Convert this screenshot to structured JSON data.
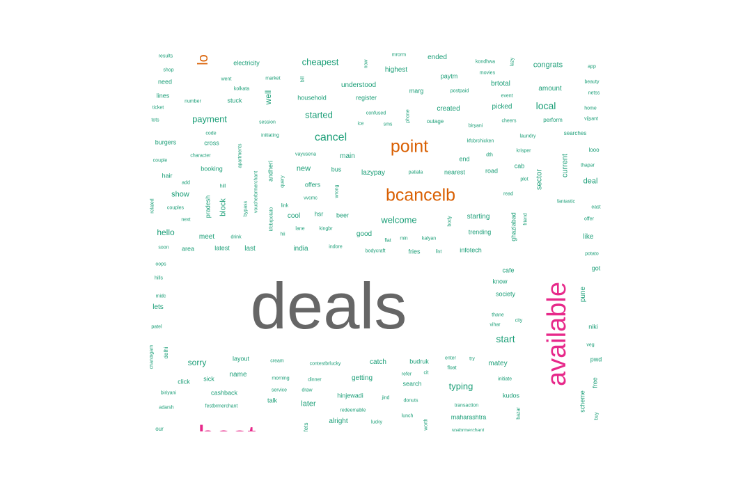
{
  "palette": {
    "small": "#1b9e77",
    "medium": "#d95f02",
    "large": "#e7298a",
    "largest": "#666666"
  },
  "words": [
    {
      "text": "deals",
      "tier": "largest"
    },
    {
      "text": "available",
      "tier": "large"
    },
    {
      "text": "best",
      "tier": "large"
    },
    {
      "text": "point",
      "tier": "medium"
    },
    {
      "text": "bcancelb",
      "tier": "medium"
    },
    {
      "text": "lo",
      "tier": "medium"
    },
    {
      "text": "cancel",
      "tier": "small"
    },
    {
      "text": "cheapest",
      "tier": "small"
    },
    {
      "text": "payment",
      "tier": "small"
    },
    {
      "text": "started",
      "tier": "small"
    },
    {
      "text": "local",
      "tier": "small"
    },
    {
      "text": "welcome",
      "tier": "small"
    },
    {
      "text": "start",
      "tier": "small"
    },
    {
      "text": "typing",
      "tier": "small"
    },
    {
      "text": "sorry",
      "tier": "small"
    },
    {
      "text": "hello",
      "tier": "small"
    },
    {
      "text": "well",
      "tier": "small"
    },
    {
      "text": "new",
      "tier": "small"
    },
    {
      "text": "show",
      "tier": "small"
    },
    {
      "text": "deal",
      "tier": "small"
    },
    {
      "text": "current",
      "tier": "small"
    },
    {
      "text": "sector",
      "tier": "small"
    },
    {
      "text": "block",
      "tier": "small"
    },
    {
      "text": "congrats",
      "tier": "small"
    },
    {
      "text": "amount",
      "tier": "small"
    },
    {
      "text": "created",
      "tier": "small"
    },
    {
      "text": "picked",
      "tier": "small"
    },
    {
      "text": "brtotal",
      "tier": "small"
    },
    {
      "text": "understood",
      "tier": "small"
    },
    {
      "text": "highest",
      "tier": "small"
    },
    {
      "text": "ended",
      "tier": "small"
    },
    {
      "text": "paytm",
      "tier": "small"
    },
    {
      "text": "marg",
      "tier": "small"
    },
    {
      "text": "register",
      "tier": "small"
    },
    {
      "text": "household",
      "tier": "small"
    },
    {
      "text": "electricity",
      "tier": "small"
    },
    {
      "text": "need",
      "tier": "small"
    },
    {
      "text": "lines",
      "tier": "small"
    },
    {
      "text": "stuck",
      "tier": "small"
    },
    {
      "text": "burgers",
      "tier": "small"
    },
    {
      "text": "cross",
      "tier": "small"
    },
    {
      "text": "booking",
      "tier": "small"
    },
    {
      "text": "hair",
      "tier": "small"
    },
    {
      "text": "main",
      "tier": "small"
    },
    {
      "text": "bus",
      "tier": "small"
    },
    {
      "text": "lazypay",
      "tier": "small"
    },
    {
      "text": "nearest",
      "tier": "small"
    },
    {
      "text": "end",
      "tier": "small"
    },
    {
      "text": "road",
      "tier": "small"
    },
    {
      "text": "cab",
      "tier": "small"
    },
    {
      "text": "offers",
      "tier": "small"
    },
    {
      "text": "cool",
      "tier": "small"
    },
    {
      "text": "hsr",
      "tier": "small"
    },
    {
      "text": "beer",
      "tier": "small"
    },
    {
      "text": "starting",
      "tier": "small"
    },
    {
      "text": "trending",
      "tier": "small"
    },
    {
      "text": "infotech",
      "tier": "small"
    },
    {
      "text": "good",
      "tier": "small"
    },
    {
      "text": "meet",
      "tier": "small"
    },
    {
      "text": "area",
      "tier": "small"
    },
    {
      "text": "latest",
      "tier": "small"
    },
    {
      "text": "last",
      "tier": "small"
    },
    {
      "text": "india",
      "tier": "small"
    },
    {
      "text": "fries",
      "tier": "small"
    },
    {
      "text": "like",
      "tier": "small"
    },
    {
      "text": "got",
      "tier": "small"
    },
    {
      "text": "cafe",
      "tier": "small"
    },
    {
      "text": "know",
      "tier": "small"
    },
    {
      "text": "society",
      "tier": "small"
    },
    {
      "text": "pune",
      "tier": "small"
    },
    {
      "text": "niki",
      "tier": "small"
    },
    {
      "text": "lets",
      "tier": "small"
    },
    {
      "text": "layout",
      "tier": "small"
    },
    {
      "text": "catch",
      "tier": "small"
    },
    {
      "text": "budruk",
      "tier": "small"
    },
    {
      "text": "matey",
      "tier": "small"
    },
    {
      "text": "name",
      "tier": "small"
    },
    {
      "text": "getting",
      "tier": "small"
    },
    {
      "text": "search",
      "tier": "small"
    },
    {
      "text": "click",
      "tier": "small"
    },
    {
      "text": "sick",
      "tier": "small"
    },
    {
      "text": "cashback",
      "tier": "small"
    },
    {
      "text": "talk",
      "tier": "small"
    },
    {
      "text": "later",
      "tier": "small"
    },
    {
      "text": "hinjewadi",
      "tier": "small"
    },
    {
      "text": "kudos",
      "tier": "small"
    },
    {
      "text": "alright",
      "tier": "small"
    },
    {
      "text": "maharashtra",
      "tier": "small"
    },
    {
      "text": "pwd",
      "tier": "small"
    },
    {
      "text": "free",
      "tier": "small"
    },
    {
      "text": "scheme",
      "tier": "small"
    },
    {
      "text": "pradesh",
      "tier": "small"
    },
    {
      "text": "ghaziabad",
      "tier": "small"
    },
    {
      "text": "andheri",
      "tier": "small"
    },
    {
      "text": "results",
      "tier": "small"
    },
    {
      "text": "shop",
      "tier": "small"
    },
    {
      "text": "ticket",
      "tier": "small"
    },
    {
      "text": "tots",
      "tier": "small"
    },
    {
      "text": "couple",
      "tier": "small"
    },
    {
      "text": "add",
      "tier": "small"
    },
    {
      "text": "couples",
      "tier": "small"
    },
    {
      "text": "next",
      "tier": "small"
    },
    {
      "text": "related",
      "tier": "small"
    },
    {
      "text": "soon",
      "tier": "small"
    },
    {
      "text": "oops",
      "tier": "small"
    },
    {
      "text": "hills",
      "tier": "small"
    },
    {
      "text": "midc",
      "tier": "small"
    },
    {
      "text": "patel",
      "tier": "small"
    },
    {
      "text": "delhi",
      "tier": "small"
    },
    {
      "text": "biriyani",
      "tier": "small"
    },
    {
      "text": "adarsh",
      "tier": "small"
    },
    {
      "text": "went",
      "tier": "small"
    },
    {
      "text": "kolkata",
      "tier": "small"
    },
    {
      "text": "number",
      "tier": "small"
    },
    {
      "text": "code",
      "tier": "small"
    },
    {
      "text": "character",
      "tier": "small"
    },
    {
      "text": "hill",
      "tier": "small"
    },
    {
      "text": "drink",
      "tier": "small"
    },
    {
      "text": "market",
      "tier": "small"
    },
    {
      "text": "session",
      "tier": "small"
    },
    {
      "text": "initiating",
      "tier": "small"
    },
    {
      "text": "vayusena",
      "tier": "small"
    },
    {
      "text": "vvcmc",
      "tier": "small"
    },
    {
      "text": "link",
      "tier": "small"
    },
    {
      "text": "lane",
      "tier": "small"
    },
    {
      "text": "kingbr",
      "tier": "small"
    },
    {
      "text": "hii",
      "tier": "small"
    },
    {
      "text": "indore",
      "tier": "small"
    },
    {
      "text": "now",
      "tier": "small"
    },
    {
      "text": "bill",
      "tier": "small"
    },
    {
      "text": "confused",
      "tier": "small"
    },
    {
      "text": "ice",
      "tier": "small"
    },
    {
      "text": "sms",
      "tier": "small"
    },
    {
      "text": "phone",
      "tier": "small"
    },
    {
      "text": "outage",
      "tier": "small"
    },
    {
      "text": "postpaid",
      "tier": "small"
    },
    {
      "text": "biryani",
      "tier": "small"
    },
    {
      "text": "kfcbrchicken",
      "tier": "small"
    },
    {
      "text": "dth",
      "tier": "small"
    },
    {
      "text": "patiala",
      "tier": "small"
    },
    {
      "text": "min",
      "tier": "small"
    },
    {
      "text": "kalyan",
      "tier": "small"
    },
    {
      "text": "flat",
      "tier": "small"
    },
    {
      "text": "list",
      "tier": "small"
    },
    {
      "text": "bodycraft",
      "tier": "small"
    },
    {
      "text": "body",
      "tier": "small"
    },
    {
      "text": "kondhwa",
      "tier": "small"
    },
    {
      "text": "movies",
      "tier": "small"
    },
    {
      "text": "lazy",
      "tier": "small"
    },
    {
      "text": "event",
      "tier": "small"
    },
    {
      "text": "cheers",
      "tier": "small"
    },
    {
      "text": "laundry",
      "tier": "small"
    },
    {
      "text": "krisper",
      "tier": "small"
    },
    {
      "text": "plot",
      "tier": "small"
    },
    {
      "text": "read",
      "tier": "small"
    },
    {
      "text": "friend",
      "tier": "small"
    },
    {
      "text": "app",
      "tier": "small"
    },
    {
      "text": "beauty",
      "tier": "small"
    },
    {
      "text": "netss",
      "tier": "small"
    },
    {
      "text": "home",
      "tier": "small"
    },
    {
      "text": "vijyant",
      "tier": "small"
    },
    {
      "text": "perform",
      "tier": "small"
    },
    {
      "text": "searches",
      "tier": "small"
    },
    {
      "text": "looo",
      "tier": "small"
    },
    {
      "text": "thapar",
      "tier": "small"
    },
    {
      "text": "fantastic",
      "tier": "small"
    },
    {
      "text": "east",
      "tier": "small"
    },
    {
      "text": "offer",
      "tier": "small"
    },
    {
      "text": "potato",
      "tier": "small"
    },
    {
      "text": "thane",
      "tier": "small"
    },
    {
      "text": "vihar",
      "tier": "small"
    },
    {
      "text": "city",
      "tier": "small"
    },
    {
      "text": "veg",
      "tier": "small"
    },
    {
      "text": "enter",
      "tier": "small"
    },
    {
      "text": "try",
      "tier": "small"
    },
    {
      "text": "float",
      "tier": "small"
    },
    {
      "text": "refer",
      "tier": "small"
    },
    {
      "text": "cit",
      "tier": "small"
    },
    {
      "text": "initiate",
      "tier": "small"
    },
    {
      "text": "cream",
      "tier": "small"
    },
    {
      "text": "contestbrlucky",
      "tier": "small"
    },
    {
      "text": "dinner",
      "tier": "small"
    },
    {
      "text": "morning",
      "tier": "small"
    },
    {
      "text": "service",
      "tier": "small"
    },
    {
      "text": "draw",
      "tier": "small"
    },
    {
      "text": "jind",
      "tier": "small"
    },
    {
      "text": "donuts",
      "tier": "small"
    },
    {
      "text": "transaction",
      "tier": "small"
    },
    {
      "text": "festbrmerchant",
      "tier": "small"
    },
    {
      "text": "redeemable",
      "tier": "small"
    },
    {
      "text": "lunch",
      "tier": "small"
    },
    {
      "text": "lucky",
      "tier": "small"
    },
    {
      "text": "spabrmerchant",
      "tier": "small"
    },
    {
      "text": "bazar",
      "tier": "small"
    },
    {
      "text": "buy",
      "tier": "small"
    },
    {
      "text": "worth",
      "tier": "small"
    },
    {
      "text": "query",
      "tier": "small"
    },
    {
      "text": "wrong",
      "tier": "small"
    },
    {
      "text": "bypass",
      "tier": "small"
    },
    {
      "text": "apartments",
      "tier": "small"
    },
    {
      "text": "voucherbrmerchant",
      "tier": "small"
    },
    {
      "text": "kfcbrpotato",
      "tier": "small"
    },
    {
      "text": "chandigarh",
      "tier": "small"
    },
    {
      "text": "our",
      "tier": "small"
    },
    {
      "text": "fets",
      "tier": "small"
    },
    {
      "text": "mrorm",
      "tier": "small"
    }
  ]
}
